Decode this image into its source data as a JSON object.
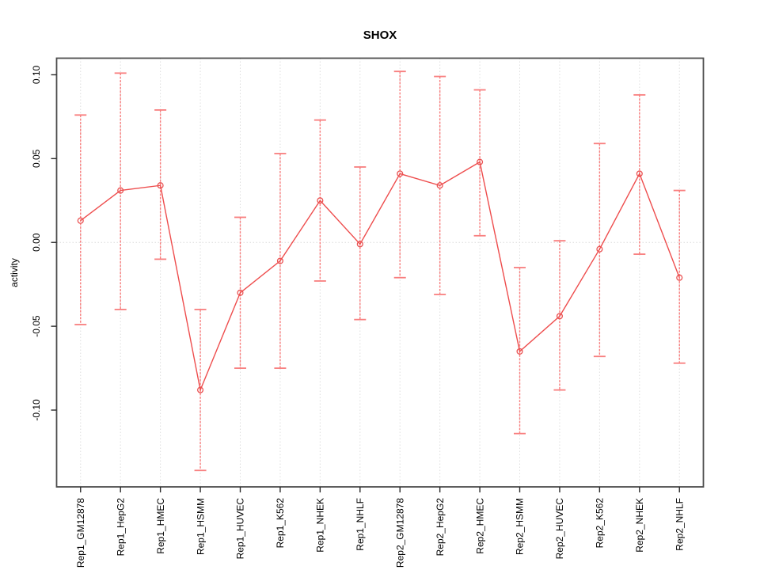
{
  "window": {
    "background": "#ffffff"
  },
  "chart_data": {
    "type": "line",
    "subtype": "points-with-error-bars",
    "title": "SHOX",
    "xlabel": "",
    "ylabel": "activity",
    "legend_position": "none",
    "grid": "vertical dotted gridlines at each category plus dotted horizontal line at y=0",
    "categories": [
      "Rep1_GM12878",
      "Rep1_HepG2",
      "Rep1_HMEC",
      "Rep1_HSMM",
      "Rep1_HUVEC",
      "Rep1_K562",
      "Rep1_NHEK",
      "Rep1_NHLF",
      "Rep2_GM12878",
      "Rep2_HepG2",
      "Rep2_HMEC",
      "Rep2_HSMM",
      "Rep2_HUVEC",
      "Rep2_K562",
      "Rep2_NHEK",
      "Rep2_NHLF"
    ],
    "series": [
      {
        "name": "activity",
        "marker": "open-circle",
        "values": [
          0.013,
          0.031,
          0.034,
          -0.088,
          -0.03,
          -0.011,
          0.025,
          -0.001,
          0.041,
          0.034,
          0.048,
          -0.065,
          -0.044,
          -0.004,
          0.041,
          -0.021
        ],
        "error_upper": [
          0.076,
          0.101,
          0.079,
          -0.04,
          0.015,
          0.053,
          0.073,
          0.045,
          0.102,
          0.099,
          0.091,
          -0.015,
          0.001,
          0.059,
          0.088,
          0.031
        ],
        "error_lower": [
          -0.049,
          -0.04,
          -0.01,
          -0.136,
          -0.075,
          -0.075,
          -0.023,
          -0.046,
          -0.021,
          -0.031,
          0.004,
          -0.114,
          -0.088,
          -0.068,
          -0.007,
          -0.072
        ]
      }
    ],
    "ytick_labels": [
      "0.10",
      "0.05",
      "0.00",
      "-0.05",
      "-0.10"
    ],
    "ylim": [
      -0.1458,
      0.1099
    ],
    "colors": {
      "line": "#ee4d4d",
      "marker": "#ea5252",
      "error_bar": "#f87e7e",
      "gridline": "#dedede",
      "zero_line": "#d9d9d9",
      "box": "#4d4d4d",
      "tick": "#2b2b2b",
      "text": "#000000"
    }
  }
}
